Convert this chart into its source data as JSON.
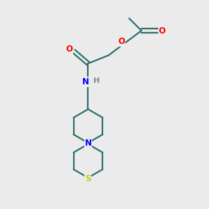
{
  "background_color": "#ebebeb",
  "bond_color": "#2d6e6e",
  "atom_colors": {
    "O": "#ff0000",
    "N": "#0000ff",
    "S": "#cccc00",
    "H": "#888888",
    "C": "#2d6e6e"
  },
  "figsize": [
    3.0,
    3.0
  ],
  "dpi": 100
}
